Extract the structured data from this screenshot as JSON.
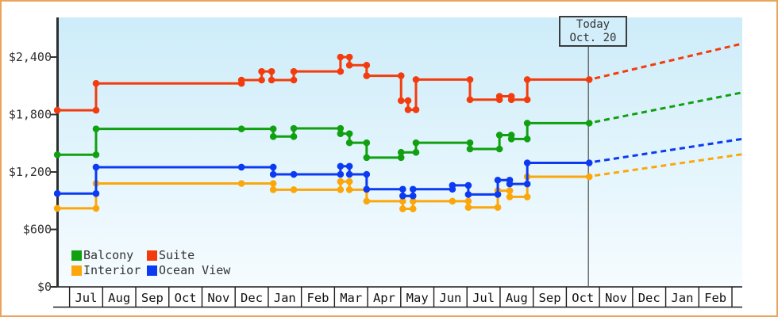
{
  "window": {
    "frame_border_color": "#eba45c",
    "plot_bg_top": "#cdecf9",
    "plot_bg_bottom": "#f6fcff",
    "text_color": "#333333"
  },
  "chart_data": {
    "type": "line",
    "subtype": "step-price-history-with-projection",
    "title": "",
    "xlabel": "",
    "ylabel": "",
    "x_axis": {
      "unit": "month",
      "months": [
        "Jul",
        "Aug",
        "Sep",
        "Oct",
        "Nov",
        "Dec",
        "Jan",
        "Feb",
        "Mar",
        "Apr",
        "May",
        "Jun",
        "Jul",
        "Aug",
        "Sep",
        "Oct",
        "Nov",
        "Dec",
        "Jan",
        "Feb"
      ]
    },
    "y_axis": {
      "unit": "USD",
      "max_value": 2815,
      "ticks": [
        {
          "value": 0,
          "label": "$0"
        },
        {
          "value": 600,
          "label": "$600"
        },
        {
          "value": 1200,
          "label": "$1,200"
        },
        {
          "value": 1800,
          "label": "$1,800"
        },
        {
          "value": 2400,
          "label": "$2,400"
        }
      ]
    },
    "today": {
      "line1": "Today",
      "line2": "Oct. 20",
      "month_position": 15.69
    },
    "grid": false,
    "legend_position": "bottom-left-inside",
    "series": [
      {
        "name": "Interior",
        "color": "#fba70b",
        "points": [
          [
            -0.37,
            820
          ],
          [
            0.8,
            1080
          ],
          [
            5.19,
            1080
          ],
          [
            6.15,
            1015
          ],
          [
            6.77,
            1015
          ],
          [
            8.18,
            1100
          ],
          [
            8.45,
            1015
          ],
          [
            8.97,
            895
          ],
          [
            10.06,
            815
          ],
          [
            10.37,
            895
          ],
          [
            11.56,
            895
          ],
          [
            12.04,
            830
          ],
          [
            12.93,
            1005
          ],
          [
            13.29,
            940
          ],
          [
            13.82,
            1150
          ],
          [
            15.69,
            1150
          ]
        ],
        "projection": [
          [
            15.69,
            1150
          ],
          [
            20.31,
            1385
          ]
        ]
      },
      {
        "name": "Ocean View",
        "color": "#0b3af2",
        "points": [
          [
            -0.37,
            975
          ],
          [
            0.8,
            1250
          ],
          [
            5.19,
            1250
          ],
          [
            6.15,
            1175
          ],
          [
            6.77,
            1175
          ],
          [
            8.18,
            1260
          ],
          [
            8.45,
            1175
          ],
          [
            8.97,
            1020
          ],
          [
            10.06,
            950
          ],
          [
            10.37,
            1020
          ],
          [
            11.56,
            1060
          ],
          [
            12.04,
            965
          ],
          [
            12.93,
            1115
          ],
          [
            13.29,
            1075
          ],
          [
            13.82,
            1295
          ],
          [
            15.69,
            1295
          ]
        ],
        "projection": [
          [
            15.69,
            1295
          ],
          [
            20.31,
            1545
          ]
        ]
      },
      {
        "name": "Balcony",
        "color": "#10a010",
        "points": [
          [
            -0.37,
            1380
          ],
          [
            0.8,
            1650
          ],
          [
            5.19,
            1650
          ],
          [
            6.15,
            1570
          ],
          [
            6.77,
            1655
          ],
          [
            8.18,
            1600
          ],
          [
            8.45,
            1505
          ],
          [
            8.97,
            1350
          ],
          [
            10.01,
            1405
          ],
          [
            10.46,
            1505
          ],
          [
            12.09,
            1440
          ],
          [
            12.98,
            1585
          ],
          [
            13.34,
            1545
          ],
          [
            13.82,
            1710
          ],
          [
            15.69,
            1710
          ]
        ],
        "projection": [
          [
            15.69,
            1710
          ],
          [
            20.31,
            2030
          ]
        ]
      },
      {
        "name": "Suite",
        "color": "#f23c0e",
        "points": [
          [
            -0.37,
            1845
          ],
          [
            0.8,
            2125
          ],
          [
            5.19,
            2160
          ],
          [
            5.8,
            2250
          ],
          [
            6.1,
            2160
          ],
          [
            6.77,
            2250
          ],
          [
            8.18,
            2400
          ],
          [
            8.45,
            2315
          ],
          [
            8.97,
            2205
          ],
          [
            10.01,
            1945
          ],
          [
            10.22,
            1850
          ],
          [
            10.46,
            2165
          ],
          [
            12.09,
            1955
          ],
          [
            12.98,
            1990
          ],
          [
            13.34,
            1955
          ],
          [
            13.82,
            2165
          ],
          [
            15.69,
            2165
          ]
        ],
        "projection": [
          [
            15.69,
            2165
          ],
          [
            20.31,
            2540
          ]
        ]
      }
    ]
  }
}
